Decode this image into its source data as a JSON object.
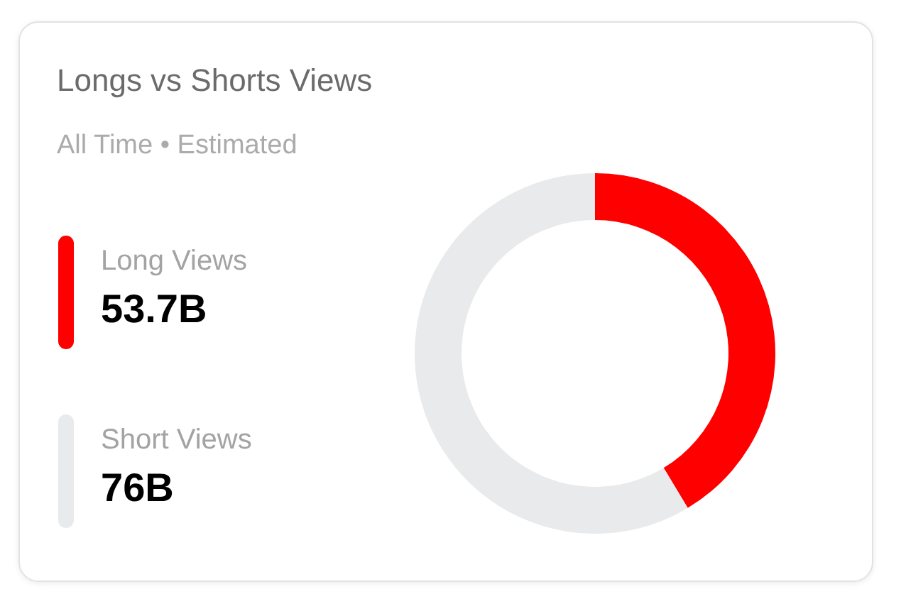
{
  "chart_data": {
    "type": "donut",
    "title": "Longs vs Shorts Views",
    "subtitle": "All Time • Estimated",
    "categories": [
      "Long Views",
      "Short Views"
    ],
    "values": [
      53.7,
      76
    ],
    "value_labels": [
      "53.7B",
      "76B"
    ],
    "colors": [
      "#ff0000",
      "#e8eaeb"
    ],
    "legend": "left"
  }
}
